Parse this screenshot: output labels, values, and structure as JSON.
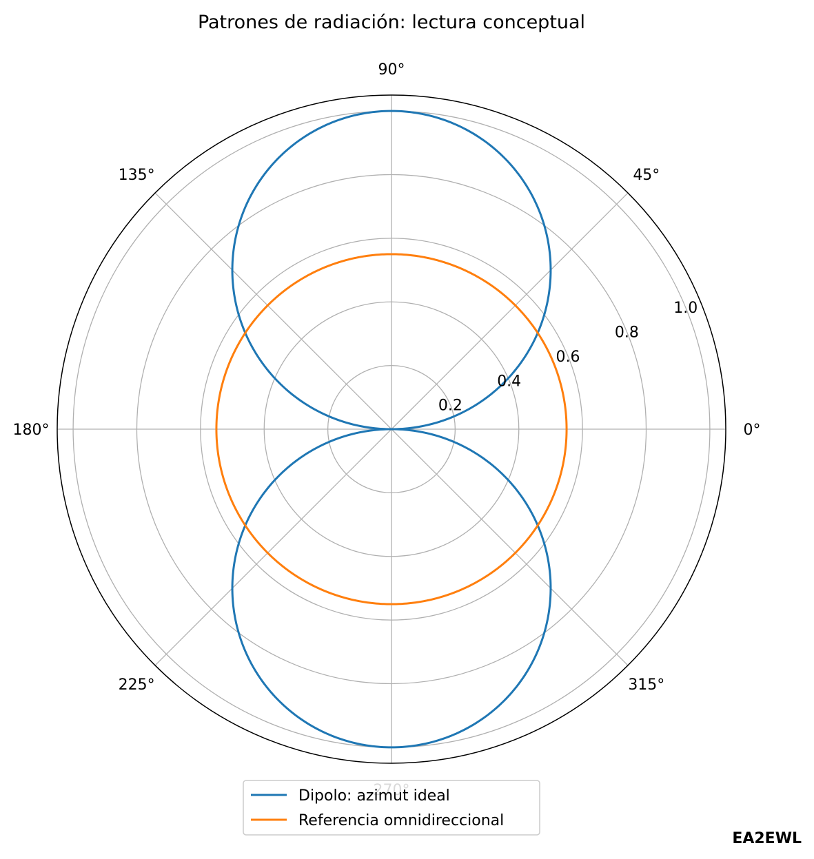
{
  "chart_data": {
    "type": "polar-line",
    "title": "Patrones de radiación: lectura conceptual",
    "theta_unit": "degrees",
    "r_lim": [
      0,
      1.05
    ],
    "grid": true,
    "angle_ticks": [
      {
        "deg": 0,
        "label": "0°"
      },
      {
        "deg": 45,
        "label": "45°"
      },
      {
        "deg": 90,
        "label": "90°"
      },
      {
        "deg": 135,
        "label": "135°"
      },
      {
        "deg": 180,
        "label": "180°"
      },
      {
        "deg": 225,
        "label": "225°"
      },
      {
        "deg": 270,
        "label": "270°"
      },
      {
        "deg": 315,
        "label": "315°"
      }
    ],
    "radial_ticks": [
      {
        "r": 0.2,
        "label": "0.2"
      },
      {
        "r": 0.4,
        "label": "0.4"
      },
      {
        "r": 0.6,
        "label": "0.6"
      },
      {
        "r": 0.8,
        "label": "0.8"
      },
      {
        "r": 1.0,
        "label": "1.0"
      }
    ],
    "radial_label_angle_deg": 22.5,
    "series": [
      {
        "name": "Dipolo: azimut ideal",
        "function": "abs(sin(theta))",
        "color": "#1f77b4"
      },
      {
        "name": "Referencia omnidireccional",
        "function": "constant",
        "r": 0.55,
        "color": "#ff7f0e"
      }
    ],
    "legend": {
      "position": "bottom-center"
    }
  },
  "watermark": "EA2EWL"
}
